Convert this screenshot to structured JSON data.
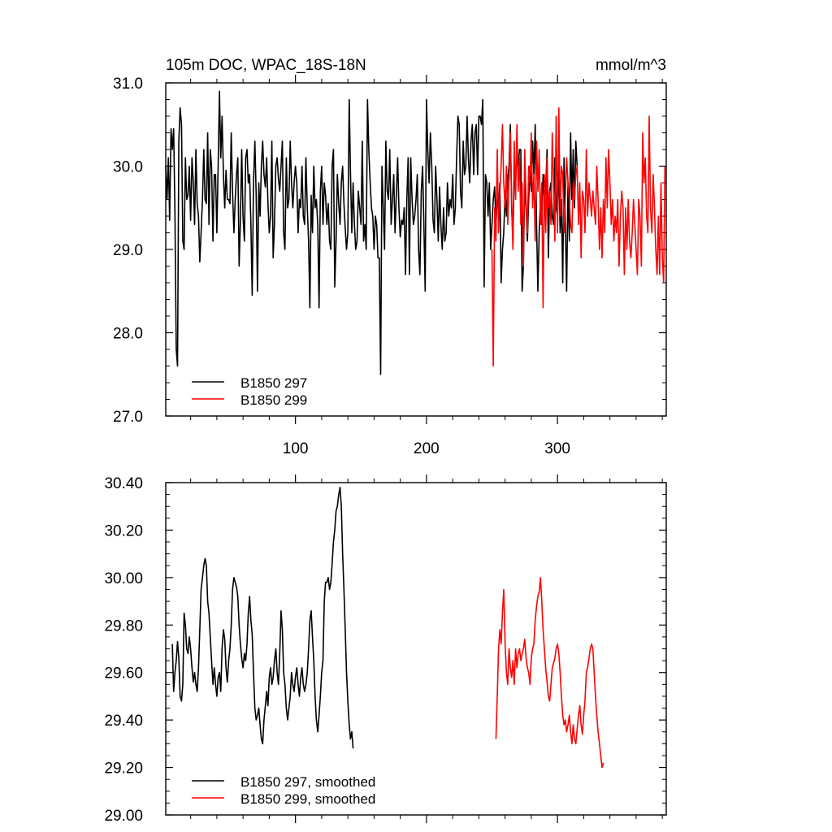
{
  "chart_data": [
    {
      "type": "line",
      "title": "105m DOC, WPAC_18S-18N",
      "units": "mmol/m^3",
      "xlim": [
        1,
        383
      ],
      "ylim": [
        27.0,
        31.0
      ],
      "xticks": [
        100,
        200,
        300
      ],
      "yticks": [
        27.0,
        28.0,
        29.0,
        30.0,
        31.0
      ],
      "ytick_labels": [
        "27.0",
        "28.0",
        "29.0",
        "30.0",
        "31.0"
      ],
      "legend_position": "bottom-left",
      "series": [
        {
          "name": "B1850 297",
          "color": "#000000",
          "x_start": 1,
          "values": [
            30.0,
            29.6,
            30.1,
            29.35,
            30.45,
            30.2,
            30.45,
            29.45,
            27.8,
            27.6,
            30.3,
            30.7,
            30.5,
            29.1,
            29.0,
            30.1,
            29.6,
            29.65,
            30.0,
            29.35,
            30.1,
            29.8,
            29.3,
            30.2,
            29.55,
            29.4,
            28.85,
            29.2,
            29.6,
            30.2,
            29.6,
            29.55,
            30.4,
            29.3,
            30.2,
            30.0,
            29.1,
            29.9,
            29.9,
            29.2,
            30.0,
            30.9,
            30.1,
            30.6,
            29.9,
            29.5,
            29.95,
            29.6,
            29.6,
            29.55,
            30.4,
            29.7,
            29.2,
            29.6,
            29.9,
            30.1,
            28.8,
            29.35,
            30.2,
            29.4,
            29.1,
            30.1,
            30.2,
            29.8,
            29.9,
            29.3,
            28.45,
            29.8,
            30.3,
            29.65,
            28.5,
            29.8,
            29.4,
            30.0,
            30.3,
            29.9,
            29.75,
            30.1,
            29.55,
            29.2,
            29.4,
            30.3,
            28.9,
            29.3,
            30.0,
            30.1,
            29.85,
            29.7,
            30.0,
            30.3,
            29.2,
            29.0,
            30.1,
            29.5,
            29.6,
            30.3,
            29.8,
            29.5,
            29.8,
            30.0,
            29.8,
            29.2,
            29.6,
            29.5,
            30.0,
            29.4,
            29.3,
            30.1,
            29.5,
            29.1,
            28.3,
            29.65,
            29.2,
            30.0,
            29.5,
            29.6,
            29.3,
            28.3,
            29.7,
            30.0,
            29.3,
            29.8,
            29.65,
            29.3,
            29.55,
            29.1,
            29.0,
            30.0,
            30.2,
            28.55,
            29.1,
            29.9,
            29.55,
            29.3,
            29.8,
            30.0,
            29.55,
            29.25,
            29.0,
            29.2,
            30.8,
            29.9,
            29.2,
            29.8,
            29.3,
            29.0,
            29.1,
            29.7,
            29.5,
            29.3,
            30.3,
            29.1,
            29.3,
            29.0,
            30.8,
            30.2,
            29.8,
            29.5,
            29.4,
            29.0,
            29.4,
            29.3,
            28.9,
            28.9,
            27.5,
            30.0,
            29.5,
            29.0,
            30.3,
            29.7,
            29.6,
            30.2,
            29.3,
            29.6,
            29.9,
            29.2,
            29.65,
            30.1,
            29.5,
            29.15,
            29.35,
            29.3,
            29.5,
            28.7,
            29.6,
            30.1,
            28.7,
            30.1,
            29.6,
            29.3,
            29.4,
            29.6,
            29.9,
            29.0,
            28.7,
            29.7,
            30.0,
            29.3,
            28.5,
            30.8,
            30.2,
            29.8,
            30.4,
            30.0,
            29.35,
            29.2,
            30.0,
            29.6,
            29.1,
            29.75,
            29.3,
            29.0,
            29.5,
            29.1,
            29.2,
            29.8,
            29.4,
            29.6,
            29.5,
            29.9,
            29.3,
            29.5,
            30.1,
            30.6,
            30.5,
            29.7,
            29.5,
            30.3,
            29.9,
            30.0,
            30.6,
            30.1,
            29.8,
            30.3,
            30.5,
            29.9,
            30.4,
            30.5,
            29.9,
            30.6,
            30.6,
            30.5,
            30.8,
            28.55,
            29.9,
            29.8,
            29.4,
            29.8,
            29.0,
            29.3,
            29.6,
            29.75,
            29.3,
            29.6,
            29.5,
            29.8,
            28.6,
            29.0,
            29.2,
            29.7,
            29.4,
            29.85,
            30.0,
            30.5,
            29.5,
            29.1,
            29.9,
            29.9,
            30.1,
            30.0,
            30.2,
            30.2,
            28.5,
            28.8,
            29.8,
            29.5,
            29.1,
            29.6,
            30.0,
            29.7,
            30.3,
            29.9,
            30.5,
            29.3,
            28.5,
            29.2,
            29.6,
            29.3,
            29.9,
            29.6,
            29.7,
            30.2,
            28.9,
            29.7,
            29.8,
            29.4,
            29.3,
            30.1,
            29.5,
            29.4,
            30.0,
            29.2,
            29.6,
            28.6,
            30.1,
            29.3,
            28.5,
            29.8,
            29.1,
            30.4,
            29.6,
            30.2,
            29.5,
            30.3,
            30.0
          ]
        },
        {
          "name": "B1850 299",
          "color": "#ff0000",
          "x_start": 250,
          "values": [
            29.0,
            27.6,
            29.5,
            29.1,
            30.2,
            29.2,
            29.7,
            30.0,
            30.5,
            29.8,
            29.5,
            30.0,
            29.3,
            29.8,
            30.4,
            29.6,
            29.0,
            30.3,
            29.6,
            30.5,
            29.7,
            30.1,
            29.3,
            29.8,
            28.8,
            30.2,
            29.6,
            29.2,
            30.0,
            29.8,
            30.4,
            29.5,
            29.9,
            29.1,
            30.3,
            29.7,
            30.2,
            29.3,
            29.8,
            28.3,
            29.9,
            29.2,
            30.1,
            29.5,
            29.7,
            29.3,
            30.4,
            29.8,
            29.1,
            30.6,
            29.2,
            30.7,
            29.4,
            30.0,
            29.9,
            29.2,
            29.6,
            30.1,
            29.8,
            29.6,
            29.3,
            29.2,
            29.8,
            29.6,
            29.9,
            30.0,
            29.3,
            29.8,
            28.9,
            29.7,
            29.6,
            29.2,
            30.2,
            29.4,
            29.8,
            29.6,
            29.4,
            29.7,
            29.5,
            29.3,
            30.0,
            29.6,
            29.0,
            29.5,
            28.9,
            29.6,
            29.2,
            30.1,
            29.5,
            30.2,
            29.8,
            29.3,
            29.6,
            29.1,
            29.4,
            29.2,
            29.6,
            28.8,
            29.4,
            29.7,
            29.5,
            28.7,
            29.5,
            29.0,
            29.6,
            29.1,
            28.9,
            29.2,
            29.6,
            29.3,
            29.0,
            28.7,
            29.6,
            29.4,
            28.8,
            30.4,
            29.8,
            30.1,
            29.4,
            29.2,
            30.6,
            29.5,
            29.2,
            29.9,
            29.5,
            29.0,
            28.7,
            29.4,
            28.7,
            29.8,
            28.9,
            28.6,
            30.0
          ]
        }
      ]
    },
    {
      "type": "line",
      "xlim": [
        1,
        383
      ],
      "ylim": [
        29.0,
        30.4
      ],
      "xticks": [
        100,
        200,
        300
      ],
      "yticks": [
        29.0,
        29.2,
        29.4,
        29.6,
        29.8,
        30.0,
        30.2,
        30.4
      ],
      "ytick_labels": [
        "29.00",
        "29.20",
        "29.40",
        "29.60",
        "29.80",
        "30.00",
        "30.20",
        "30.40"
      ],
      "legend_position": "bottom-left",
      "series": [
        {
          "name": "B1850 297, smoothed",
          "color": "#000000",
          "x_start": 6,
          "values": [
            29.72,
            29.52,
            29.6,
            29.65,
            29.73,
            29.66,
            29.5,
            29.48,
            29.55,
            29.85,
            29.8,
            29.7,
            29.68,
            29.75,
            29.7,
            29.62,
            29.56,
            29.6,
            29.55,
            29.52,
            29.62,
            29.78,
            29.95,
            30.0,
            30.05,
            30.08,
            30.05,
            29.9,
            29.85,
            29.75,
            29.65,
            29.55,
            29.62,
            29.55,
            29.5,
            29.58,
            29.6,
            29.52,
            29.7,
            29.78,
            29.74,
            29.62,
            29.56,
            29.65,
            29.7,
            29.8,
            29.95,
            30.0,
            29.98,
            29.96,
            29.92,
            29.8,
            29.72,
            29.66,
            29.62,
            29.68,
            29.65,
            29.72,
            29.85,
            29.92,
            29.82,
            29.76,
            29.6,
            29.45,
            29.4,
            29.42,
            29.45,
            29.38,
            29.32,
            29.3,
            29.4,
            29.46,
            29.52,
            29.46,
            29.58,
            29.62,
            29.55,
            29.58,
            29.65,
            29.7,
            29.6,
            29.55,
            29.68,
            29.86,
            29.78,
            29.6,
            29.55,
            29.45,
            29.4,
            29.45,
            29.5,
            29.6,
            29.55,
            29.52,
            29.58,
            29.62,
            29.55,
            29.5,
            29.58,
            29.62,
            29.55,
            29.52,
            29.55,
            29.6,
            29.7,
            29.82,
            29.86,
            29.75,
            29.65,
            29.5,
            29.4,
            29.35,
            29.42,
            29.5,
            29.6,
            29.65,
            29.9,
            29.98,
            29.98,
            30.0,
            29.95,
            29.98,
            30.06,
            30.15,
            30.2,
            30.28,
            30.3,
            30.35,
            30.38,
            30.3,
            30.1,
            29.95,
            29.78,
            29.6,
            29.48,
            29.38,
            29.32,
            29.35,
            29.28
          ]
        },
        {
          "name": "B1850 299, smoothed",
          "color": "#ff0000",
          "x_start": 253,
          "values": [
            29.32,
            29.5,
            29.7,
            29.78,
            29.72,
            29.85,
            29.95,
            29.72,
            29.6,
            29.55,
            29.7,
            29.62,
            29.58,
            29.65,
            29.55,
            29.7,
            29.62,
            29.68,
            29.7,
            29.65,
            29.68,
            29.7,
            29.74,
            29.66,
            29.62,
            29.6,
            29.55,
            29.66,
            29.7,
            29.72,
            29.82,
            29.88,
            29.92,
            29.94,
            30.0,
            29.9,
            29.78,
            29.7,
            29.62,
            29.56,
            29.5,
            29.48,
            29.55,
            29.62,
            29.64,
            29.66,
            29.7,
            29.72,
            29.68,
            29.6,
            29.5,
            29.42,
            29.38,
            29.4,
            29.35,
            29.38,
            29.42,
            29.35,
            29.3,
            29.38,
            29.32,
            29.3,
            29.36,
            29.42,
            29.46,
            29.38,
            29.34,
            29.42,
            29.48,
            29.6,
            29.62,
            29.66,
            29.7,
            29.72,
            29.7,
            29.6,
            29.5,
            29.42,
            29.35,
            29.3,
            29.25,
            29.2,
            29.22
          ]
        }
      ]
    }
  ]
}
